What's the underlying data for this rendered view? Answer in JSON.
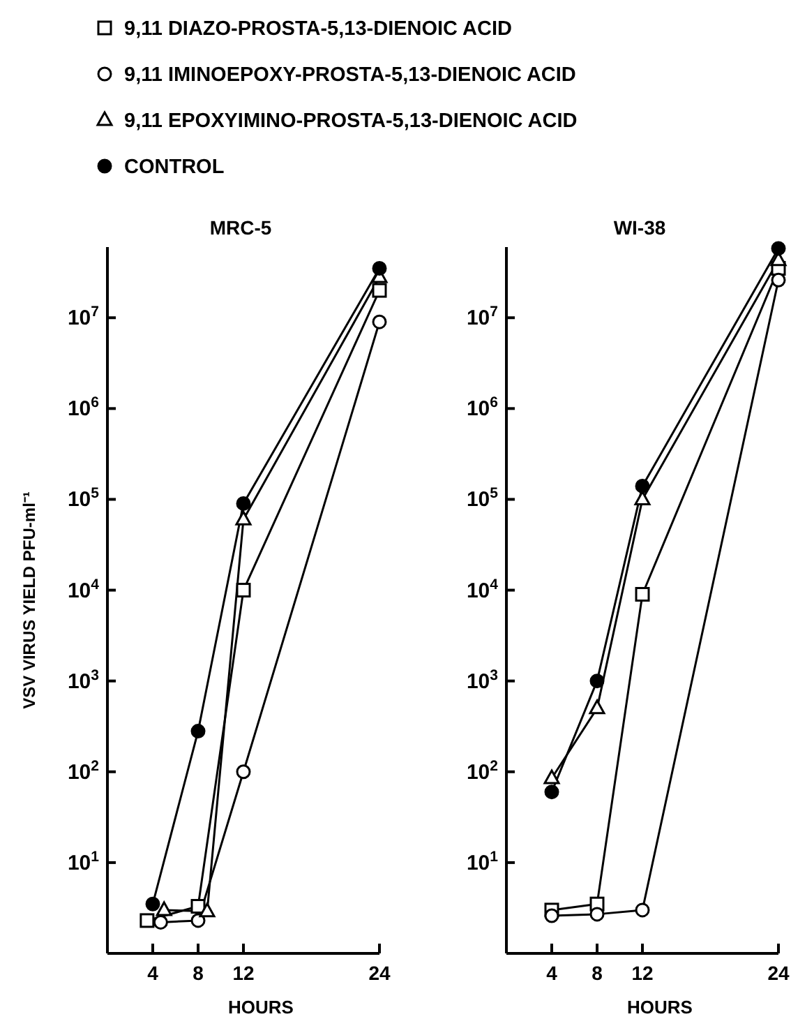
{
  "chart_data": [
    {
      "type": "line",
      "title": "MRC-5",
      "xlabel": "HOURS",
      "ylabel": "VSV VIRUS YIELD PFU-ml⁻¹",
      "x": [
        4,
        8,
        12,
        24
      ],
      "xlim": [
        0,
        24
      ],
      "xticks": [
        4,
        8,
        12,
        24
      ],
      "log": "y",
      "ylim": [
        1,
        60000000
      ],
      "yticks": [
        {
          "value": 10,
          "label": "10$^{1}$"
        },
        {
          "value": 100,
          "label": "10$^{2}$"
        },
        {
          "value": 1000,
          "label": "10$^{3}$"
        },
        {
          "value": 10000,
          "label": "10$^{4}$"
        },
        {
          "value": 100000,
          "label": "10$^{5}$"
        },
        {
          "value": 1000000,
          "label": "10$^{6}$"
        },
        {
          "value": 10000000,
          "label": "10$^{7}$"
        }
      ],
      "grid": false,
      "legend": "top",
      "line_style": "solid",
      "series": [
        {
          "name": "9,11 DIAZO-PROSTA-5,13-DIENOIC ACID",
          "color": "#ffffff",
          "marker": "square",
          "x": [
            3.5,
            8,
            12,
            24
          ],
          "values": [
            2.3,
            3.3,
            10000,
            20000000
          ]
        },
        {
          "name": "9,11 IMINOEPOXY-PROSTA-5,13-DIENOIC ACID",
          "color": "#ffffff",
          "marker": "circle",
          "x": [
            4.7,
            8,
            12,
            24
          ],
          "values": [
            2.2,
            2.3,
            100,
            9000000
          ]
        },
        {
          "name": "9,11 EPOXYIMINO-PROSTA-5,13-DIENOIC ACID",
          "color": "#ffffff",
          "marker": "triangle",
          "x": [
            5,
            8.8,
            12,
            24
          ],
          "values": [
            3,
            2.9,
            60000,
            28000000
          ]
        },
        {
          "name": "CONTROL",
          "color": "#000000",
          "marker": "circle",
          "values": [
            3.5,
            280,
            90000,
            35000000
          ]
        }
      ]
    },
    {
      "type": "line",
      "title": "WI-38",
      "xlabel": "HOURS",
      "x": [
        4,
        8,
        12,
        24
      ],
      "xlim": [
        0,
        24
      ],
      "xticks": [
        4,
        8,
        12,
        24
      ],
      "log": "y",
      "ylim": [
        1,
        60000000
      ],
      "yticks": [
        {
          "value": 10,
          "label": "10$^{1}$"
        },
        {
          "value": 100,
          "label": "10$^{2}$"
        },
        {
          "value": 1000,
          "label": "10$^{3}$"
        },
        {
          "value": 10000,
          "label": "10$^{4}$"
        },
        {
          "value": 100000,
          "label": "10$^{5}$"
        },
        {
          "value": 1000000,
          "label": "10$^{6}$"
        },
        {
          "value": 10000000,
          "label": "10$^{7}$"
        }
      ],
      "grid": false,
      "legend": false,
      "line_style": "solid",
      "series": [
        {
          "color": "#ffffff",
          "marker": "square",
          "values": [
            3,
            3.5,
            9000,
            35000000
          ]
        },
        {
          "color": "#ffffff",
          "marker": "circle",
          "values": [
            2.6,
            2.7,
            3,
            26000000
          ]
        },
        {
          "color": "#ffffff",
          "marker": "triangle",
          "values": [
            85,
            500,
            100000,
            43000000
          ]
        },
        {
          "color": "#000000",
          "marker": "circle",
          "values": [
            60,
            1000,
            140000,
            58000000
          ]
        }
      ]
    }
  ]
}
